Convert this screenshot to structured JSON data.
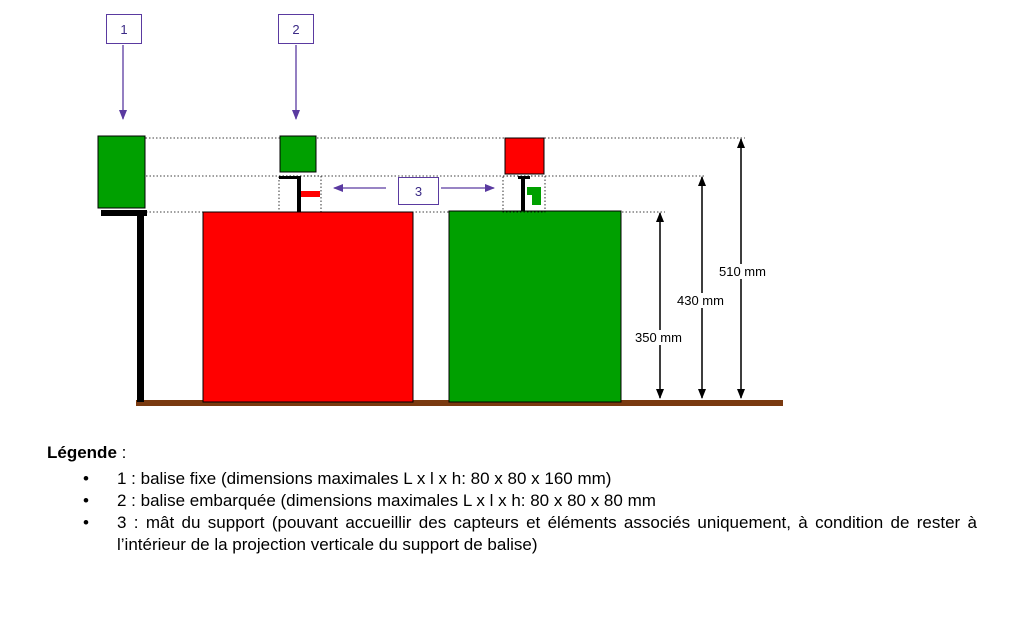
{
  "labels": {
    "one": "1",
    "two": "2",
    "three": "3"
  },
  "dimensions": {
    "d350": "350 mm",
    "d430": "430 mm",
    "d510": "510 mm"
  },
  "legend": {
    "title": "Légende",
    "title_suffix": " :",
    "bullet": "•",
    "items": [
      "1 : balise fixe (dimensions maximales L x l x h: 80 x 80 x 160 mm)",
      "2 : balise embarquée (dimensions maximales L x l x h: 80 x 80 x 80 mm",
      "3 : mât du support (pouvant accueillir des capteurs et éléments associés uniquement, à condition de rester à l’intérieur de la projection verticale du support de balise)"
    ]
  },
  "colors": {
    "red": "#ff0000",
    "green": "#00a000",
    "purple": "#5a3aa0",
    "ground": "#7a3a10"
  }
}
